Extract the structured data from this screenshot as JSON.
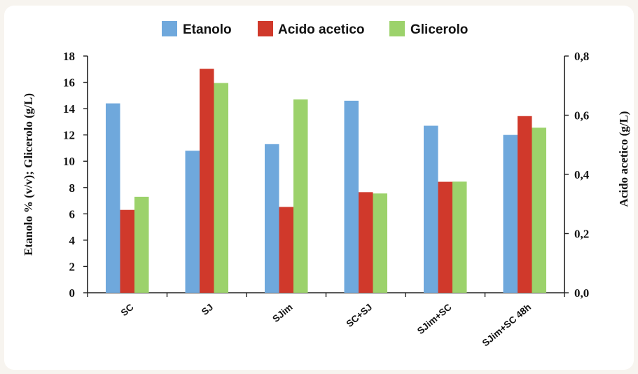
{
  "chart_data": {
    "type": "bar",
    "categories": [
      "SC",
      "SJ",
      "SJim",
      "SC+SJ",
      "SJim+SC",
      "SJim+SC 48h"
    ],
    "series": [
      {
        "name": "Etanolo",
        "axis": "left",
        "color": "#6fa8dc",
        "values": [
          14.4,
          10.8,
          11.3,
          14.6,
          12.7,
          12.0
        ]
      },
      {
        "name": "Acido acetico",
        "axis": "right",
        "color": "#d0392b",
        "values": [
          0.28,
          0.757,
          0.29,
          0.34,
          0.375,
          0.597
        ]
      },
      {
        "name": "Glicerolo",
        "axis": "left",
        "color": "#9cd26b",
        "values": [
          7.3,
          15.95,
          14.7,
          7.55,
          8.45,
          12.55
        ]
      }
    ],
    "y_left": {
      "label": "Etanolo % (v/v); Glicerolo (g/L)",
      "ylim": [
        0,
        18
      ],
      "ticks": [
        "0",
        "2",
        "4",
        "6",
        "8",
        "10",
        "12",
        "14",
        "16",
        "18"
      ]
    },
    "y_right": {
      "label": "Acido acetico (g/L)",
      "ylim": [
        0,
        0.8
      ],
      "ticks": [
        "0,0",
        "0,2",
        "0,4",
        "0,6",
        "0,8"
      ]
    },
    "legend_position": "top-center",
    "grid": false
  }
}
